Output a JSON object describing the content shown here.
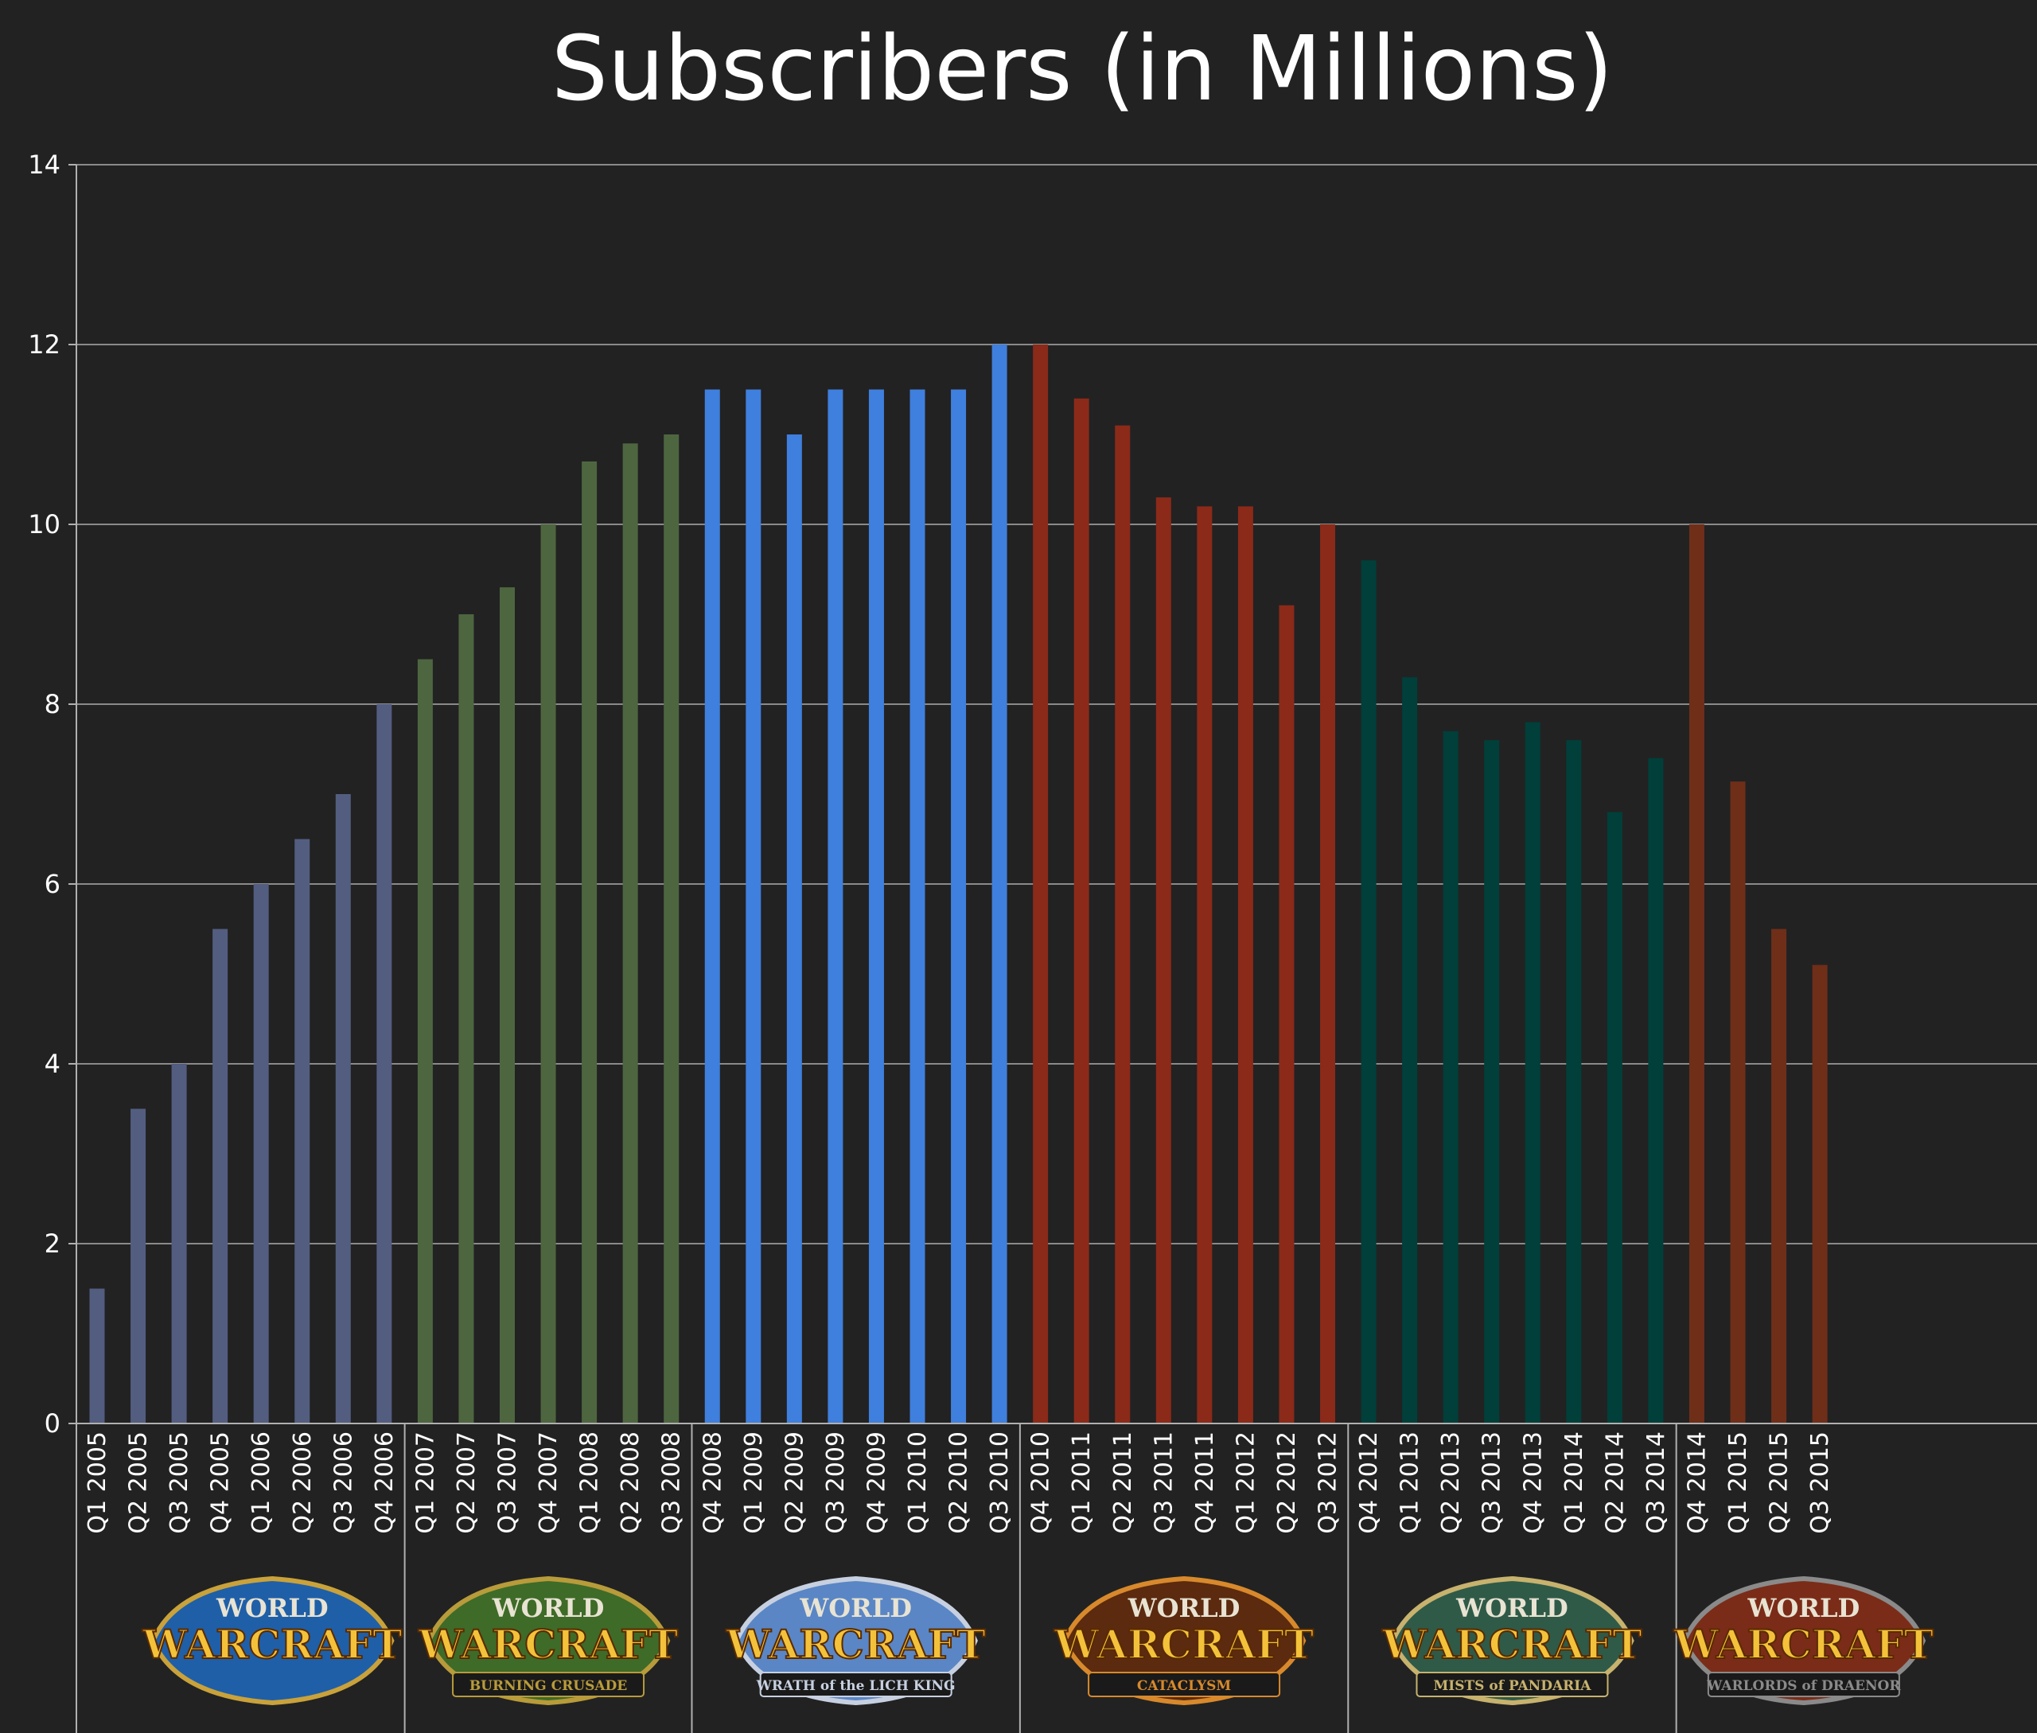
{
  "chart_data": {
    "type": "bar",
    "title": "Subscribers (in Millions)",
    "xlabel": "",
    "ylabel": "",
    "ylim": [
      0,
      14
    ],
    "yticks": [
      0,
      2,
      4,
      6,
      8,
      10,
      12,
      14
    ],
    "grid": true,
    "legend": "none",
    "categories": [
      "Q1 2005",
      "Q2 2005",
      "Q3 2005",
      "Q4 2005",
      "Q1 2006",
      "Q2 2006",
      "Q3 2006",
      "Q4 2006",
      "Q1 2007",
      "Q2 2007",
      "Q3 2007",
      "Q4 2007",
      "Q1 2008",
      "Q2 2008",
      "Q3 2008",
      "Q4 2008",
      "Q1 2009",
      "Q2 2009",
      "Q3 2009",
      "Q4 2009",
      "Q1 2010",
      "Q2 2010",
      "Q3 2010",
      "Q4 2010",
      "Q1 2011",
      "Q2 2011",
      "Q3 2011",
      "Q4 2011",
      "Q1 2012",
      "Q2 2012",
      "Q3 2012",
      "Q4 2012",
      "Q1 2013",
      "Q2 2013",
      "Q3 2013",
      "Q4 2013",
      "Q1 2014",
      "Q2 2014",
      "Q3 2014",
      "Q4 2014",
      "Q1 2015",
      "Q2 2015",
      "Q3 2015"
    ],
    "values": [
      1.5,
      3.5,
      4.0,
      5.5,
      6.0,
      6.5,
      7.0,
      8.0,
      8.5,
      9.0,
      9.3,
      10.0,
      10.7,
      10.9,
      11.0,
      11.5,
      11.5,
      11.0,
      11.5,
      11.5,
      11.5,
      11.5,
      12.0,
      12.0,
      11.4,
      11.1,
      10.3,
      10.2,
      10.2,
      9.1,
      10.0,
      9.6,
      8.3,
      7.7,
      7.6,
      7.8,
      7.6,
      6.8,
      7.4,
      10.0,
      7.14,
      5.5,
      5.1
    ],
    "groups": [
      {
        "start": 0,
        "count": 8,
        "color": "#535d80",
        "logo": {
          "top": "WORLD",
          "main": "WARCRAFT",
          "sub": ""
        }
      },
      {
        "start": 8,
        "count": 7,
        "color": "#4e6640",
        "logo": {
          "top": "WORLD",
          "main": "WARCRAFT",
          "sub": "BURNING CRUSADE"
        }
      },
      {
        "start": 15,
        "count": 8,
        "color": "#3f7fdd",
        "logo": {
          "top": "WORLD",
          "main": "WARCRAFT",
          "sub": "WRATH of the LICH KING"
        }
      },
      {
        "start": 23,
        "count": 8,
        "color": "#8b2a19",
        "logo": {
          "top": "WORLD",
          "main": "WARCRAFT",
          "sub": "CATACLYSM"
        }
      },
      {
        "start": 31,
        "count": 8,
        "color": "#003f3a",
        "logo": {
          "top": "WORLD",
          "main": "WARCRAFT",
          "sub": "MISTS of PANDARIA"
        }
      },
      {
        "start": 39,
        "count": 4,
        "color": "#6f2e18",
        "logo": {
          "top": "WORLD",
          "main": "WARCRAFT",
          "sub": "WARLORDS of DRAENOR"
        }
      }
    ]
  }
}
